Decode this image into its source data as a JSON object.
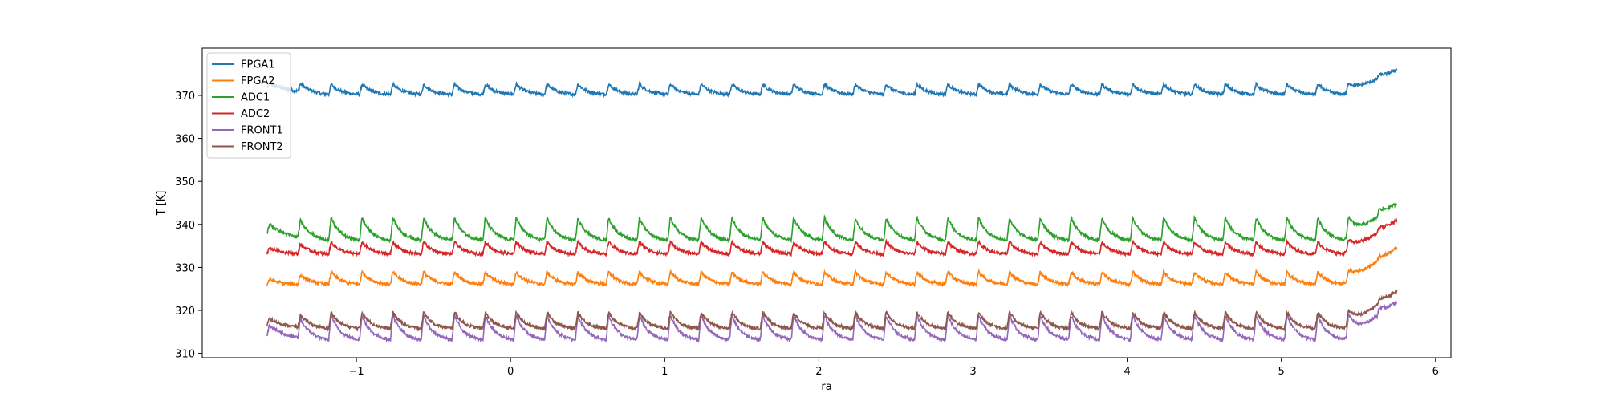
{
  "chart_data": {
    "type": "line",
    "xlabel": "ra",
    "ylabel": "T [K]",
    "xlim": [
      -2.0,
      6.1
    ],
    "ylim": [
      309,
      381
    ],
    "xticks": [
      -1,
      0,
      1,
      2,
      3,
      4,
      5,
      6
    ],
    "yticks": [
      310,
      320,
      330,
      340,
      350,
      360,
      370
    ],
    "grid": false,
    "legend": "top-left",
    "x_range": [
      -1.58,
      5.75
    ],
    "cycle_length": 0.2,
    "series": [
      {
        "name": "FPGA1",
        "color": "#1f77b4",
        "base": 371,
        "amplitude": 2.5,
        "start": 373,
        "end": 376
      },
      {
        "name": "FPGA2",
        "color": "#ff7f0e",
        "base": 327,
        "amplitude": 3.0,
        "start": 326,
        "end": 334.5
      },
      {
        "name": "ADC1",
        "color": "#2ca02c",
        "base": 338,
        "amplitude": 5.5,
        "start": 339,
        "end": 345
      },
      {
        "name": "ADC2",
        "color": "#d62728",
        "base": 334,
        "amplitude": 3.0,
        "start": 333.5,
        "end": 341
      },
      {
        "name": "FRONT1",
        "color": "#9467bd",
        "base": 315,
        "amplitude": 6.0,
        "start": 315,
        "end": 322
      },
      {
        "name": "FRONT2",
        "color": "#8c564b",
        "base": 317,
        "amplitude": 4.0,
        "start": 317,
        "end": 324.5
      }
    ]
  }
}
